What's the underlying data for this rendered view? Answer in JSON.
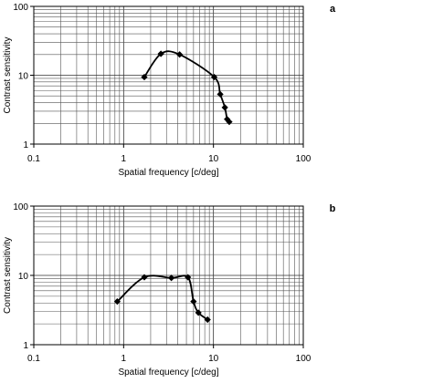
{
  "chart_data": [
    {
      "type": "line",
      "panel_label": "a",
      "xlabel": "Spatial frequency [c/deg]",
      "ylabel": "Contrast sensitivity",
      "x_scale": "log",
      "y_scale": "log",
      "xlim": [
        0.1,
        100
      ],
      "ylim": [
        1,
        100
      ],
      "x_tick_labels": [
        "0.1",
        "1",
        "10",
        "100"
      ],
      "y_tick_labels": [
        "1",
        "10",
        "100"
      ],
      "grid": true,
      "series": [
        {
          "x": [
            1.7,
            2.6,
            4.2,
            10.2,
            11.9,
            13.4,
            14.2,
            15.0
          ],
          "y": [
            9.4,
            20.5,
            20.0,
            9.4,
            5.3,
            3.4,
            2.3,
            2.1
          ]
        }
      ]
    },
    {
      "type": "line",
      "panel_label": "b",
      "xlabel": "Spatial frequency [c/deg]",
      "ylabel": "Contrast sensitivity",
      "x_scale": "log",
      "y_scale": "log",
      "xlim": [
        0.1,
        100
      ],
      "ylim": [
        1,
        100
      ],
      "x_tick_labels": [
        "0.1",
        "1",
        "10",
        "100"
      ],
      "y_tick_labels": [
        "1",
        "10",
        "100"
      ],
      "grid": true,
      "series": [
        {
          "x": [
            0.85,
            1.7,
            3.4,
            5.2,
            6.0,
            6.8,
            8.6
          ],
          "y": [
            4.2,
            9.4,
            9.2,
            9.4,
            4.2,
            2.9,
            2.3
          ]
        }
      ]
    }
  ]
}
